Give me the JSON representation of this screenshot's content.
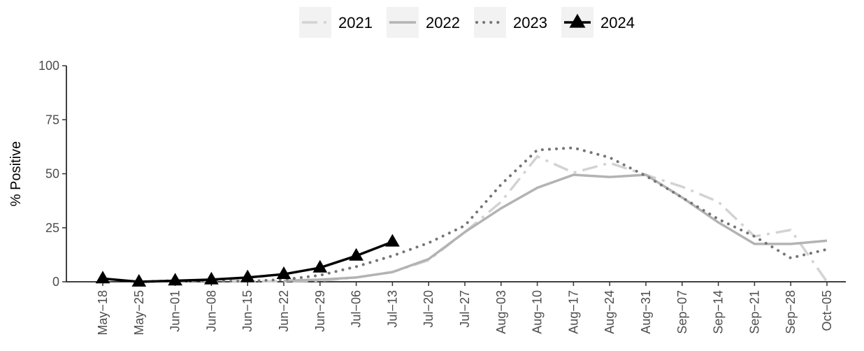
{
  "chart_data": {
    "type": "line",
    "title": "",
    "xlabel": "",
    "ylabel": "% Positive",
    "ylim": [
      0,
      100
    ],
    "yticks": [
      "0",
      "25",
      "50",
      "75",
      "100"
    ],
    "categories": [
      "May−18",
      "May−25",
      "Jun−01",
      "Jun−08",
      "Jun−15",
      "Jun−22",
      "Jun−29",
      "Jul−06",
      "Jul−13",
      "Jul−20",
      "Jul−27",
      "Aug−03",
      "Aug−10",
      "Aug−17",
      "Aug−24",
      "Aug−31",
      "Sep−07",
      "Sep−14",
      "Sep−21",
      "Sep−28",
      "Oct−05"
    ],
    "grid": false,
    "legend_position": "top",
    "series": [
      {
        "name": "2021",
        "color": "#d3d3d3",
        "style": "dashdot",
        "marker": "none",
        "values": [
          null,
          0,
          0.5,
          0.5,
          0.3,
          0.3,
          0.5,
          2,
          4.5,
          10,
          23,
          37,
          58,
          50.5,
          55,
          49.5,
          44,
          37,
          21,
          24,
          0
        ]
      },
      {
        "name": "2022",
        "color": "#b3b3b3",
        "style": "solid",
        "marker": "none",
        "values": [
          null,
          null,
          null,
          null,
          null,
          0.5,
          1,
          2,
          4.5,
          10.5,
          23,
          34,
          43.5,
          49.5,
          48.5,
          49.5,
          39,
          27.5,
          17.5,
          17.5,
          19
        ]
      },
      {
        "name": "2023",
        "color": "#757575",
        "style": "dotted",
        "marker": "none",
        "values": [
          null,
          0,
          0.5,
          0.3,
          0.3,
          1,
          3,
          7,
          12,
          18,
          26,
          45,
          61,
          62,
          57.5,
          49,
          39,
          29,
          21,
          11,
          15
        ]
      },
      {
        "name": "2024",
        "color": "#000000",
        "style": "solid",
        "marker": "triangle",
        "values": [
          1.5,
          0,
          0.5,
          1,
          2,
          3.5,
          6.5,
          12,
          18.5,
          null,
          null,
          null,
          null,
          null,
          null,
          null,
          null,
          null,
          null,
          null,
          null
        ]
      }
    ]
  }
}
